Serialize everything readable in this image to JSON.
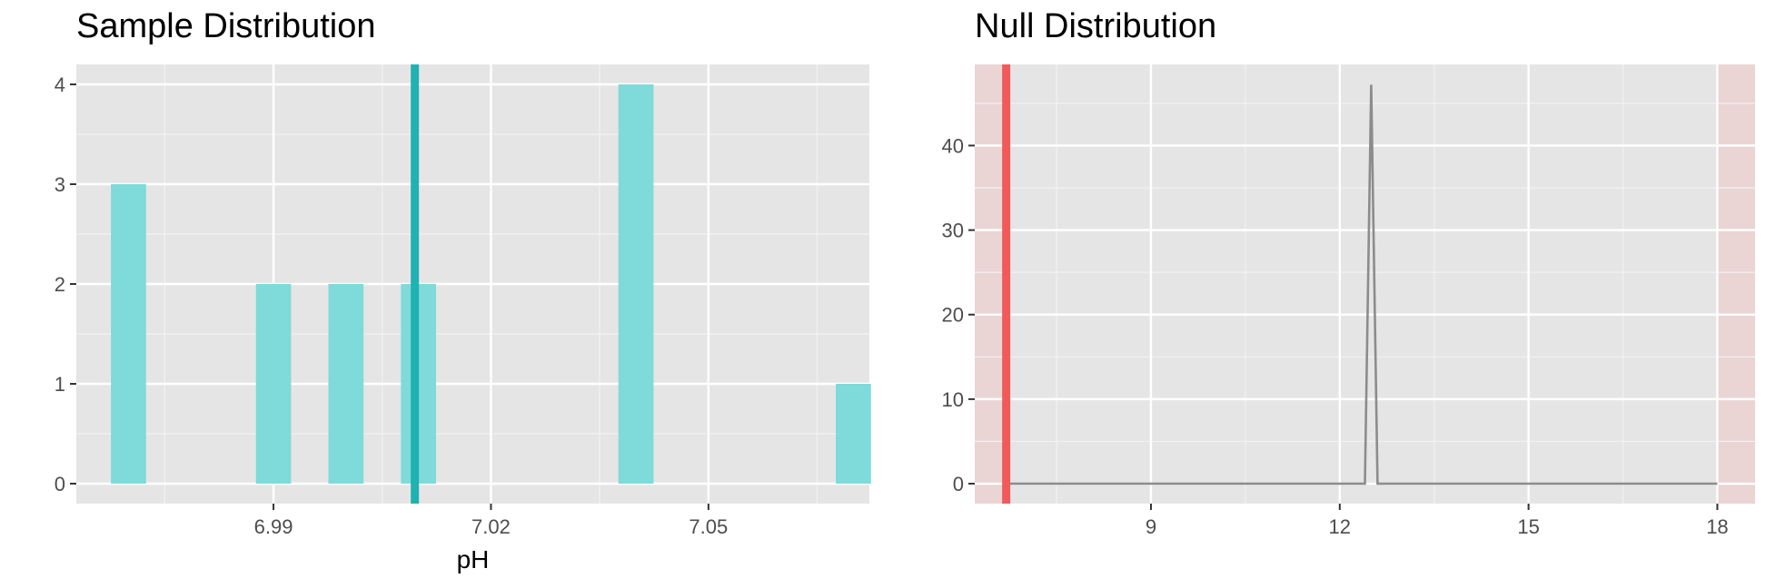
{
  "chart_data": [
    {
      "type": "bar",
      "title": "Sample Distribution",
      "xlabel": "pH",
      "ylabel": "",
      "xlim": [
        6.9628,
        7.0722
      ],
      "ylim": [
        -0.2,
        4.2
      ],
      "x_ticks": [
        6.99,
        7.02,
        7.05
      ],
      "x_tick_labels": [
        "6.99",
        "7.02",
        "7.05"
      ],
      "y_ticks": [
        0,
        1,
        2,
        3,
        4
      ],
      "y_tick_labels": [
        "0",
        "1",
        "2",
        "3",
        "4"
      ],
      "bin_width": 0.005,
      "bars": [
        {
          "x": 6.97,
          "count": 3
        },
        {
          "x": 6.99,
          "count": 2
        },
        {
          "x": 7.0,
          "count": 2
        },
        {
          "x": 7.01,
          "count": 2
        },
        {
          "x": 7.04,
          "count": 4
        },
        {
          "x": 7.07,
          "count": 1
        }
      ],
      "vline": {
        "x": 7.0095
      },
      "bar_color": "#7fdada",
      "line_color": "#20b2b2",
      "grid": true
    },
    {
      "type": "line",
      "title": "Null Distribution",
      "xlabel": "",
      "ylabel": "",
      "xlim": [
        6.2,
        18.6
      ],
      "ylim": [
        -2.36,
        49.6
      ],
      "x_ticks": [
        9,
        12,
        15,
        18
      ],
      "x_tick_labels": [
        "9",
        "12",
        "15",
        "18"
      ],
      "y_ticks": [
        0,
        10,
        20,
        30,
        40
      ],
      "y_tick_labels": [
        "0",
        "10",
        "20",
        "30",
        "40"
      ],
      "x": [
        6.7,
        12.4,
        12.5,
        12.6,
        18.0
      ],
      "y": [
        0,
        0,
        47.2,
        0,
        0
      ],
      "observed_line": {
        "x": 6.7
      },
      "shaded_regions": [
        [
          6.2,
          6.7
        ],
        [
          18.0,
          18.6
        ]
      ],
      "line_color": "#8c8c8c",
      "observed_color": "#f05a5a",
      "shade_color": "#f4b4b4",
      "grid": true
    }
  ]
}
